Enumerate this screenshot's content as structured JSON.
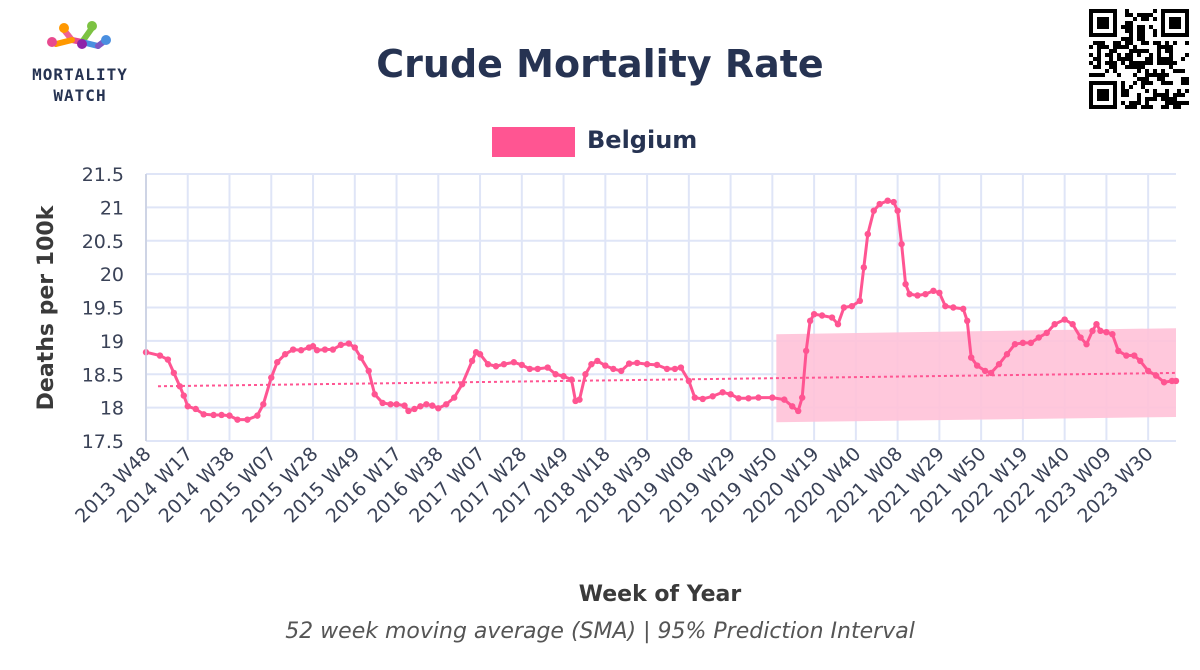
{
  "logo": {
    "line1": "MORTALITY",
    "line2": "WATCH"
  },
  "colors": {
    "series": "#ff5592",
    "band": "#ffc2d8",
    "grid": "#dfe5f7",
    "title": "#263352"
  },
  "chart_data": {
    "type": "line",
    "title": "Crude Mortality Rate",
    "subtitle": "52 week moving average (SMA) | 95% Prediction Interval",
    "xlabel": "Week of Year",
    "ylabel": "Deaths per 100k",
    "ylim": [
      17.5,
      21.5
    ],
    "yticks": [
      "17.5",
      "18",
      "18.5",
      "19",
      "19.5",
      "20",
      "20.5",
      "21",
      "21.5"
    ],
    "grid": true,
    "legend": {
      "position": "top-center",
      "entries": [
        "Belgium"
      ]
    },
    "xticks": [
      "2013 W48",
      "2014 W17",
      "2014 W38",
      "2015 W07",
      "2015 W28",
      "2015 W49",
      "2016 W17",
      "2016 W38",
      "2017 W07",
      "2017 W28",
      "2017 W49",
      "2018 W18",
      "2018 W39",
      "2019 W08",
      "2019 W29",
      "2019 W50",
      "2020 W19",
      "2020 W40",
      "2021 W08",
      "2021 W29",
      "2021 W50",
      "2022 W19",
      "2022 W40",
      "2023 W09",
      "2023 W30"
    ],
    "series": [
      {
        "name": "Belgium",
        "points": [
          [
            "2013 W48",
            18.83
          ],
          [
            "2014 W03",
            18.78
          ],
          [
            "2014 W07",
            18.72
          ],
          [
            "2014 W10",
            18.52
          ],
          [
            "2014 W13",
            18.32
          ],
          [
            "2014 W15",
            18.18
          ],
          [
            "2014 W17",
            18.02
          ],
          [
            "2014 W21",
            17.98
          ],
          [
            "2014 W25",
            17.9
          ],
          [
            "2014 W30",
            17.89
          ],
          [
            "2014 W34",
            17.89
          ],
          [
            "2014 W38",
            17.88
          ],
          [
            "2014 W42",
            17.82
          ],
          [
            "2014 W47",
            17.82
          ],
          [
            "2014 W52",
            17.88
          ],
          [
            "2015 W03",
            18.05
          ],
          [
            "2015 W07",
            18.45
          ],
          [
            "2015 W10",
            18.68
          ],
          [
            "2015 W14",
            18.8
          ],
          [
            "2015 W18",
            18.87
          ],
          [
            "2015 W22",
            18.86
          ],
          [
            "2015 W26",
            18.9
          ],
          [
            "2015 W28",
            18.92
          ],
          [
            "2015 W30",
            18.86
          ],
          [
            "2015 W34",
            18.87
          ],
          [
            "2015 W38",
            18.87
          ],
          [
            "2015 W42",
            18.94
          ],
          [
            "2015 W46",
            18.96
          ],
          [
            "2015 W49",
            18.9
          ],
          [
            "2015 W52",
            18.75
          ],
          [
            "2016 W03",
            18.55
          ],
          [
            "2016 W06",
            18.2
          ],
          [
            "2016 W10",
            18.07
          ],
          [
            "2016 W14",
            18.05
          ],
          [
            "2016 W17",
            18.05
          ],
          [
            "2016 W21",
            18.03
          ],
          [
            "2016 W23",
            17.95
          ],
          [
            "2016 W26",
            17.98
          ],
          [
            "2016 W29",
            18.02
          ],
          [
            "2016 W32",
            18.05
          ],
          [
            "2016 W35",
            18.03
          ],
          [
            "2016 W38",
            17.99
          ],
          [
            "2016 W42",
            18.05
          ],
          [
            "2016 W46",
            18.15
          ],
          [
            "2016 W50",
            18.35
          ],
          [
            "2017 W03",
            18.7
          ],
          [
            "2017 W05",
            18.83
          ],
          [
            "2017 W07",
            18.8
          ],
          [
            "2017 W11",
            18.65
          ],
          [
            "2017 W15",
            18.62
          ],
          [
            "2017 W19",
            18.65
          ],
          [
            "2017 W24",
            18.68
          ],
          [
            "2017 W28",
            18.64
          ],
          [
            "2017 W32",
            18.58
          ],
          [
            "2017 W36",
            18.58
          ],
          [
            "2017 W41",
            18.6
          ],
          [
            "2017 W45",
            18.5
          ],
          [
            "2017 W49",
            18.47
          ],
          [
            "2018 W01",
            18.42
          ],
          [
            "2018 W03",
            18.1
          ],
          [
            "2018 W05",
            18.12
          ],
          [
            "2018 W08",
            18.5
          ],
          [
            "2018 W11",
            18.65
          ],
          [
            "2018 W14",
            18.7
          ],
          [
            "2018 W18",
            18.63
          ],
          [
            "2018 W22",
            18.58
          ],
          [
            "2018 W26",
            18.55
          ],
          [
            "2018 W30",
            18.66
          ],
          [
            "2018 W34",
            18.67
          ],
          [
            "2018 W39",
            18.65
          ],
          [
            "2018 W44",
            18.64
          ],
          [
            "2018 W49",
            18.58
          ],
          [
            "2019 W01",
            18.58
          ],
          [
            "2019 W04",
            18.6
          ],
          [
            "2019 W08",
            18.4
          ],
          [
            "2019 W11",
            18.15
          ],
          [
            "2019 W15",
            18.13
          ],
          [
            "2019 W20",
            18.17
          ],
          [
            "2019 W25",
            18.23
          ],
          [
            "2019 W29",
            18.2
          ],
          [
            "2019 W33",
            18.14
          ],
          [
            "2019 W38",
            18.14
          ],
          [
            "2019 W43",
            18.15
          ],
          [
            "2019 W50",
            18.15
          ],
          [
            "2020 W04",
            18.12
          ],
          [
            "2020 W08",
            18.02
          ],
          [
            "2020 W11",
            17.95
          ],
          [
            "2020 W13",
            18.15
          ],
          [
            "2020 W15",
            18.85
          ],
          [
            "2020 W17",
            19.3
          ],
          [
            "2020 W19",
            19.4
          ],
          [
            "2020 W23",
            19.38
          ],
          [
            "2020 W28",
            19.35
          ],
          [
            "2020 W31",
            19.25
          ],
          [
            "2020 W34",
            19.5
          ],
          [
            "2020 W38",
            19.52
          ],
          [
            "2020 W42",
            19.6
          ],
          [
            "2020 W44",
            20.1
          ],
          [
            "2020 W46",
            20.6
          ],
          [
            "2020 W49",
            20.95
          ],
          [
            "2020 W52",
            21.05
          ],
          [
            "2021 W03",
            21.1
          ],
          [
            "2021 W06",
            21.08
          ],
          [
            "2021 W08",
            20.95
          ],
          [
            "2021 W10",
            20.45
          ],
          [
            "2021 W12",
            19.85
          ],
          [
            "2021 W14",
            19.7
          ],
          [
            "2021 W18",
            19.68
          ],
          [
            "2021 W22",
            19.7
          ],
          [
            "2021 W26",
            19.75
          ],
          [
            "2021 W29",
            19.72
          ],
          [
            "2021 W32",
            19.52
          ],
          [
            "2021 W36",
            19.5
          ],
          [
            "2021 W41",
            19.48
          ],
          [
            "2021 W43",
            19.3
          ],
          [
            "2021 W45",
            18.75
          ],
          [
            "2021 W48",
            18.63
          ],
          [
            "2021 W52",
            18.55
          ],
          [
            "2022 W03",
            18.52
          ],
          [
            "2022 W07",
            18.65
          ],
          [
            "2022 W11",
            18.8
          ],
          [
            "2022 W15",
            18.95
          ],
          [
            "2022 W19",
            18.97
          ],
          [
            "2022 W23",
            18.97
          ],
          [
            "2022 W27",
            19.05
          ],
          [
            "2022 W31",
            19.12
          ],
          [
            "2022 W35",
            19.25
          ],
          [
            "2022 W40",
            19.32
          ],
          [
            "2022 W44",
            19.25
          ],
          [
            "2022 W48",
            19.05
          ],
          [
            "2022 W51",
            18.95
          ],
          [
            "2023 W02",
            19.15
          ],
          [
            "2023 W04",
            19.25
          ],
          [
            "2023 W06",
            19.15
          ],
          [
            "2023 W09",
            19.13
          ],
          [
            "2023 W12",
            19.1
          ],
          [
            "2023 W15",
            18.85
          ],
          [
            "2023 W19",
            18.78
          ],
          [
            "2023 W23",
            18.78
          ],
          [
            "2023 W26",
            18.7
          ],
          [
            "2023 W30",
            18.55
          ],
          [
            "2023 W34",
            18.48
          ],
          [
            "2023 W38",
            18.38
          ],
          [
            "2023 W42",
            18.4
          ],
          [
            "2023 W44",
            18.4
          ]
        ]
      }
    ],
    "baseline": [
      [
        "2013 W48",
        18.32
      ],
      [
        "2023 W44",
        18.52
      ]
    ],
    "prediction_interval": {
      "from": "2019 W52",
      "to": "2023 W44",
      "lower": [
        17.78,
        17.86
      ],
      "upper": [
        19.1,
        19.19
      ]
    }
  }
}
